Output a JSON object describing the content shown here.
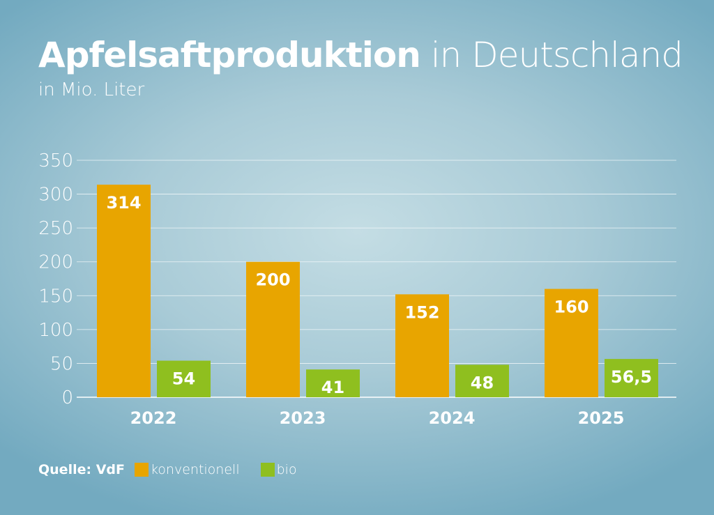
{
  "title_bold": "Apfelsaftproduktion",
  "title_light": "in Deutschland",
  "subtitle": "in Mio. Liter",
  "source": "Quelle: VdF",
  "chart_data": {
    "type": "bar",
    "categories": [
      "2022",
      "2023",
      "2024",
      "2025"
    ],
    "series": [
      {
        "name": "konventionell",
        "color": "#e8a500",
        "values": [
          314,
          200,
          152,
          160
        ],
        "labels": [
          "314",
          "200",
          "152",
          "160"
        ]
      },
      {
        "name": "bio",
        "color": "#8fbf1f",
        "values": [
          54,
          41,
          48,
          56.5
        ],
        "labels": [
          "54",
          "41",
          "48",
          "56,5"
        ]
      }
    ],
    "ylim": [
      0,
      350
    ],
    "yticks": [
      0,
      50,
      100,
      150,
      200,
      250,
      300,
      350
    ],
    "grid": true,
    "legend": "bottom-left"
  }
}
